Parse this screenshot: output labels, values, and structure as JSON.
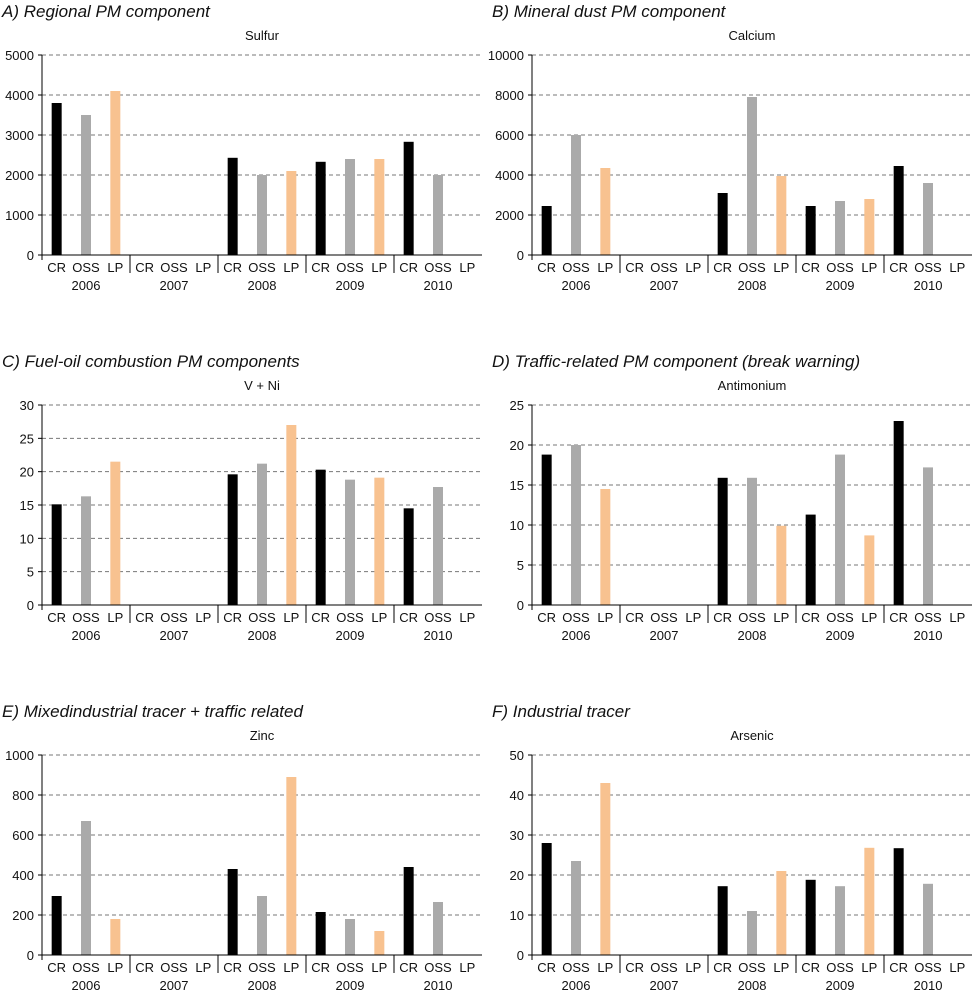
{
  "chart_data": [
    {
      "type": "bar",
      "panel_title": "A) Regional PM component",
      "title": "Sulfur",
      "ylim": [
        0,
        5000
      ],
      "yticks": [
        0,
        1000,
        2000,
        3000,
        4000,
        5000
      ],
      "categories": [
        "2006",
        "2007",
        "2008",
        "2009",
        "2010"
      ],
      "subcategories": [
        "CR",
        "OSS",
        "LP"
      ],
      "series": [
        {
          "name": "CR",
          "values": [
            3800,
            null,
            2430,
            2330,
            2830
          ]
        },
        {
          "name": "OSS",
          "values": [
            3500,
            null,
            2000,
            2400,
            2000
          ]
        },
        {
          "name": "LP",
          "values": [
            4100,
            null,
            2100,
            2400,
            null
          ]
        }
      ]
    },
    {
      "type": "bar",
      "panel_title": "B) Mineral dust PM component",
      "title": "Calcium",
      "ylim": [
        0,
        10000
      ],
      "yticks": [
        0,
        2000,
        4000,
        6000,
        8000,
        10000
      ],
      "categories": [
        "2006",
        "2007",
        "2008",
        "2009",
        "2010"
      ],
      "subcategories": [
        "CR",
        "OSS",
        "LP"
      ],
      "series": [
        {
          "name": "CR",
          "values": [
            2450,
            null,
            3100,
            2450,
            4450
          ]
        },
        {
          "name": "OSS",
          "values": [
            6000,
            null,
            7900,
            2700,
            3600
          ]
        },
        {
          "name": "LP",
          "values": [
            4350,
            null,
            3950,
            2800,
            null
          ]
        }
      ]
    },
    {
      "type": "bar",
      "panel_title": "C) Fuel-oil combustion PM components",
      "title": "V + Ni",
      "ylim": [
        0,
        30
      ],
      "yticks": [
        0,
        5,
        10,
        15,
        20,
        25,
        30
      ],
      "categories": [
        "2006",
        "2007",
        "2008",
        "2009",
        "2010"
      ],
      "subcategories": [
        "CR",
        "OSS",
        "LP"
      ],
      "series": [
        {
          "name": "CR",
          "values": [
            15.1,
            null,
            19.6,
            20.3,
            14.5
          ]
        },
        {
          "name": "OSS",
          "values": [
            16.3,
            null,
            21.2,
            18.8,
            17.7
          ]
        },
        {
          "name": "LP",
          "values": [
            21.5,
            null,
            27.0,
            19.1,
            null
          ]
        }
      ]
    },
    {
      "type": "bar",
      "panel_title": "D) Traffic-related PM component (break warning)",
      "title": "Antimonium",
      "ylim": [
        0,
        25
      ],
      "yticks": [
        0,
        5,
        10,
        15,
        20,
        25
      ],
      "categories": [
        "2006",
        "2007",
        "2008",
        "2009",
        "2010"
      ],
      "subcategories": [
        "CR",
        "OSS",
        "LP"
      ],
      "series": [
        {
          "name": "CR",
          "values": [
            18.8,
            null,
            15.9,
            11.3,
            23.0
          ]
        },
        {
          "name": "OSS",
          "values": [
            20.0,
            null,
            15.9,
            18.8,
            17.2
          ]
        },
        {
          "name": "LP",
          "values": [
            14.5,
            null,
            9.9,
            8.7,
            null
          ]
        }
      ]
    },
    {
      "type": "bar",
      "panel_title": "E) Mixedindustrial tracer + traffic related",
      "title": "Zinc",
      "ylim": [
        0,
        1000
      ],
      "yticks": [
        0,
        200,
        400,
        600,
        800,
        1000
      ],
      "categories": [
        "2006",
        "2007",
        "2008",
        "2009",
        "2010"
      ],
      "subcategories": [
        "CR",
        "OSS",
        "LP"
      ],
      "series": [
        {
          "name": "CR",
          "values": [
            295,
            null,
            430,
            215,
            440
          ]
        },
        {
          "name": "OSS",
          "values": [
            670,
            null,
            295,
            180,
            265
          ]
        },
        {
          "name": "LP",
          "values": [
            180,
            null,
            890,
            120,
            null
          ]
        }
      ]
    },
    {
      "type": "bar",
      "panel_title": "F) Industrial tracer",
      "title": "Arsenic",
      "ylim": [
        0,
        50
      ],
      "yticks": [
        0,
        10,
        20,
        30,
        40,
        50
      ],
      "categories": [
        "2006",
        "2007",
        "2008",
        "2009",
        "2010"
      ],
      "subcategories": [
        "CR",
        "OSS",
        "LP"
      ],
      "series": [
        {
          "name": "CR",
          "values": [
            28.0,
            null,
            17.2,
            18.8,
            26.7
          ]
        },
        {
          "name": "OSS",
          "values": [
            23.5,
            null,
            11.0,
            17.2,
            17.8
          ]
        },
        {
          "name": "LP",
          "values": [
            43.0,
            null,
            21.0,
            26.8,
            null
          ]
        }
      ]
    }
  ],
  "colors": {
    "CR": "#000000",
    "OSS": "#aaaaaa",
    "LP": "#f8c290"
  },
  "grid": "dashed horizontal"
}
